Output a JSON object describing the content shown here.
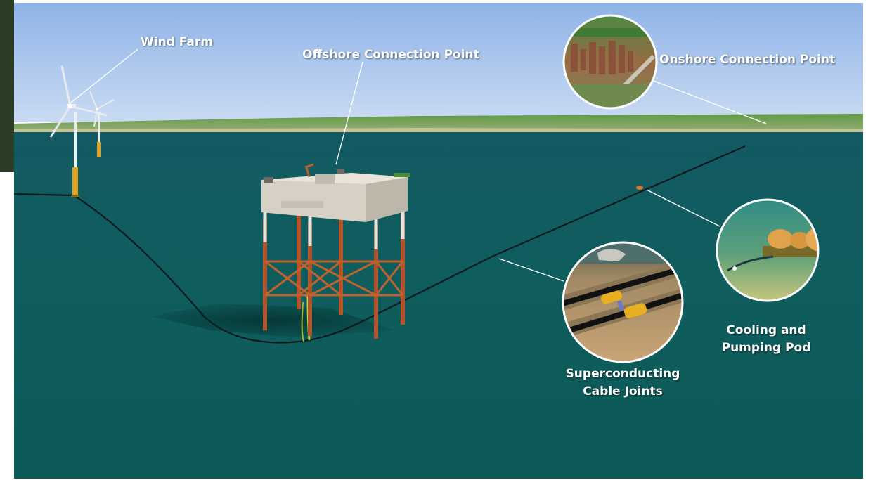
{
  "labels": {
    "wind_farm": "Wind Farm",
    "offshore_connection_point": "Offshore Connection Point",
    "onshore_connection_point": "Onshore Connection Point",
    "cooling_pod_line1": "Cooling and",
    "cooling_pod_line2": "Pumping Pod",
    "cable_joints_line1": "Superconducting",
    "cable_joints_line2": "Cable Joints"
  },
  "colors": {
    "sky": "#a8c4ec",
    "sea": "#0f5b5c",
    "coastline": "#4f8a3c",
    "jacket": "#b8552a",
    "topside": "#d9d4c8",
    "turbine_base": "#e0a020",
    "cable_joint": "#e8b020"
  }
}
